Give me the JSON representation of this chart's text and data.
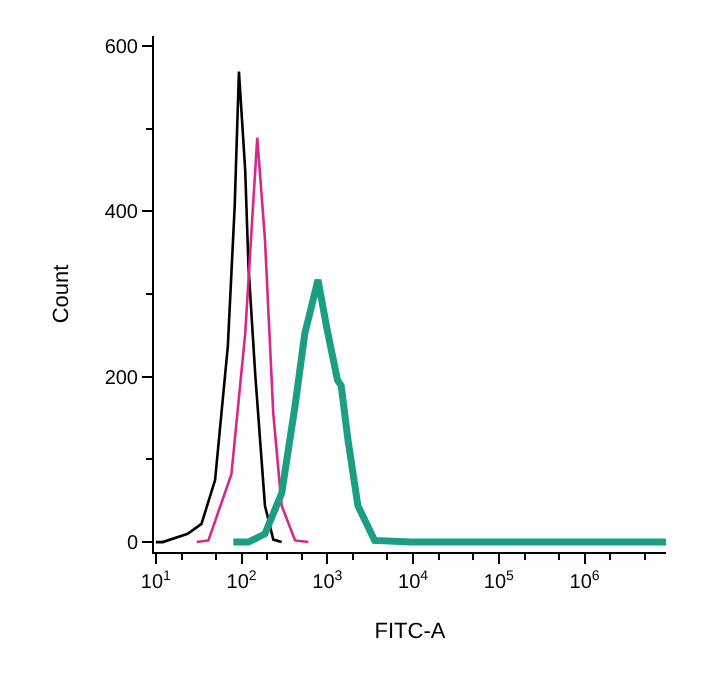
{
  "chart_data": {
    "type": "line",
    "xlabel": "FITC-A",
    "ylabel": "Count",
    "log": "x",
    "xlim": [
      9.5,
      8900000
    ],
    "ylim": [
      -12,
      612
    ],
    "xticks": [
      {
        "value": 10,
        "label": "10$^{1}$"
      },
      {
        "value": 100,
        "label": "10$^{2}$"
      },
      {
        "value": 1000,
        "label": "10$^{3}$"
      },
      {
        "value": 10000,
        "label": "10$^{4}$"
      },
      {
        "value": 100000,
        "label": "10$^{5}$"
      },
      {
        "value": 1000000,
        "label": "10$^{6}$"
      }
    ],
    "yticks": [
      0,
      200,
      400,
      600
    ],
    "marker": "none",
    "line_style": "solid",
    "series": [
      {
        "color": "#000000",
        "x": [
          10,
          12,
          23.5,
          34,
          49,
          69,
          83,
          93,
          110,
          120,
          144,
          187,
          234,
          293
        ],
        "values": [
          0,
          0,
          10,
          22,
          75,
          237,
          407,
          569,
          450,
          334,
          203,
          44,
          3,
          0
        ]
      },
      {
        "color": "#d6288a",
        "x": [
          30,
          41,
          76,
          110,
          152,
          187,
          234,
          293,
          420,
          600
        ],
        "values": [
          0,
          2,
          82,
          252,
          489,
          366,
          155,
          44,
          2,
          0
        ]
      },
      {
        "color": "#1b9e82",
        "x": [
          80,
          120,
          187,
          293,
          420,
          545,
          777,
          980,
          1310,
          1450,
          1740,
          2270,
          3560,
          9500,
          8900000
        ],
        "values": [
          0,
          0,
          10,
          59,
          165,
          252,
          317,
          260,
          196,
          189,
          123,
          44,
          2,
          0,
          0
        ]
      }
    ]
  }
}
